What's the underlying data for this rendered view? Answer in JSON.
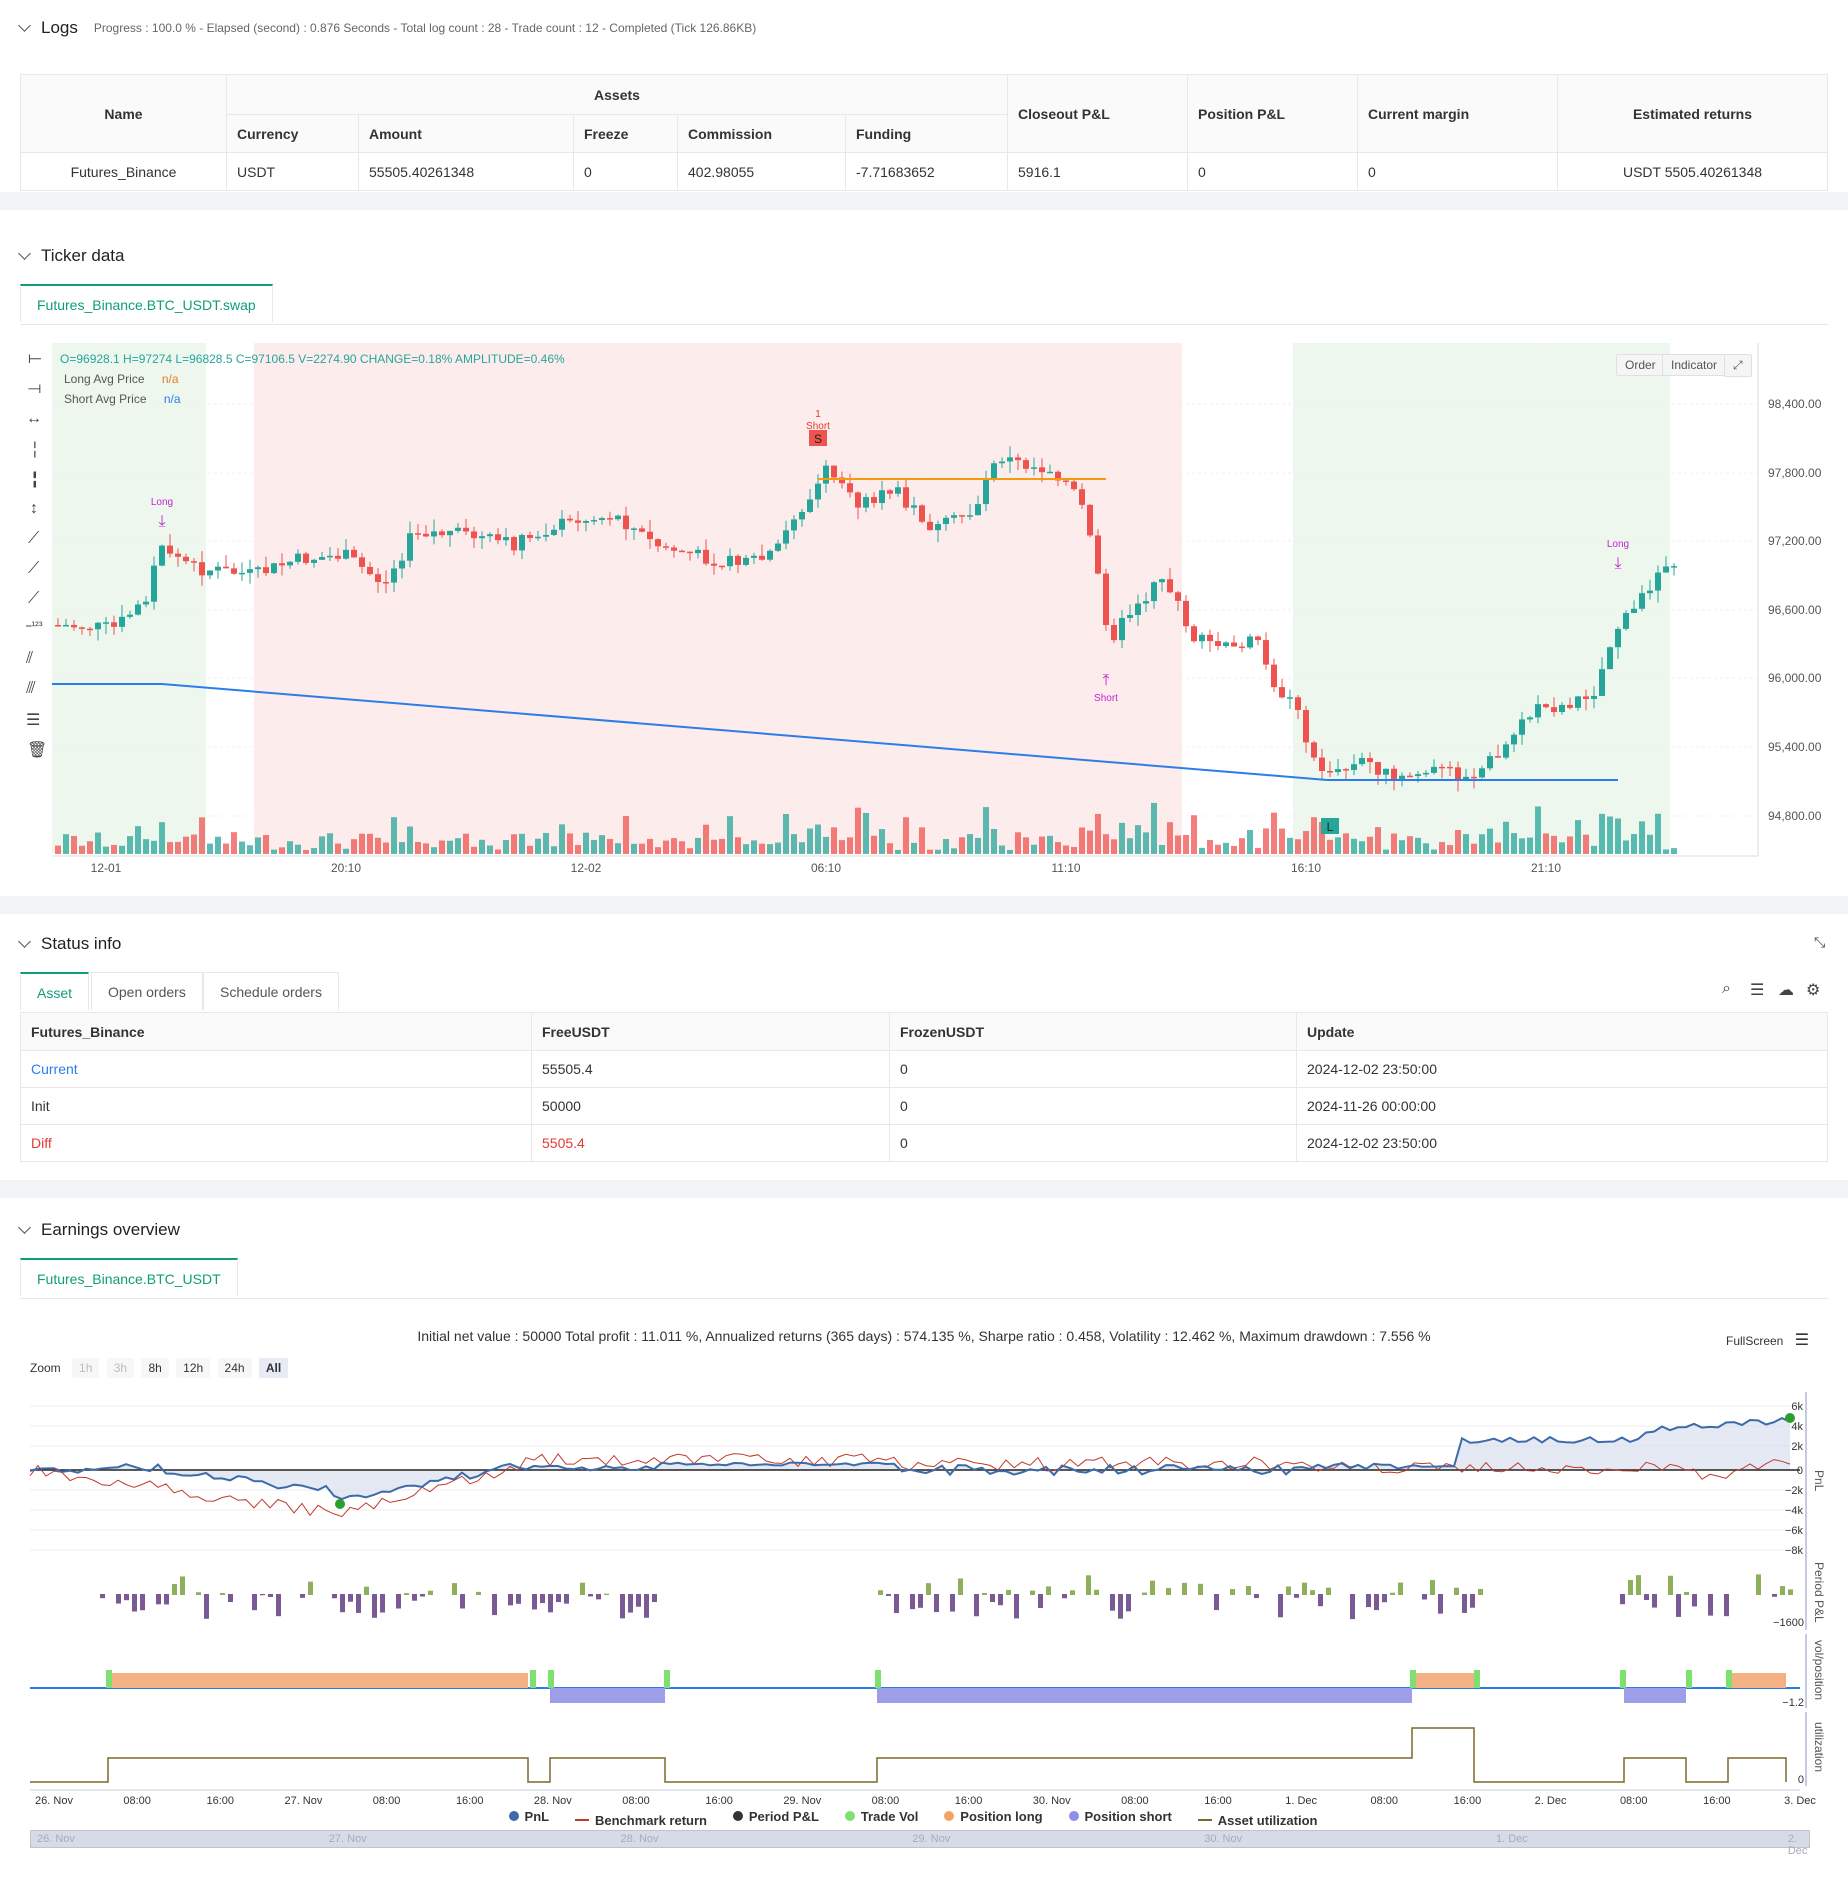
{
  "logs": {
    "title": "Logs",
    "progress": "Progress : 100.0 % - Elapsed (second) : 0.876  Seconds - Total log count : 28 - Trade count : 12 - Completed (Tick 126.86KB)",
    "table": {
      "name_h": "Name",
      "assets_h": "Assets",
      "currency_h": "Currency",
      "amount_h": "Amount",
      "freeze_h": "Freeze",
      "commission_h": "Commission",
      "funding_h": "Funding",
      "closeout_h": "Closeout P&L",
      "position_h": "Position P&L",
      "margin_h": "Current margin",
      "returns_h": "Estimated returns",
      "row": {
        "name": "Futures_Binance",
        "currency": "USDT",
        "amount": "55505.40261348",
        "freeze": "0",
        "commission": "402.98055",
        "funding": "-7.71683652",
        "closeout": "5916.1",
        "position": "0",
        "margin": "0",
        "returns": "USDT 5505.40261348"
      }
    }
  },
  "ticker": {
    "title": "Ticker data",
    "tab": "Futures_Binance.BTC_USDT.swap",
    "ohlc": "O=96928.1  H=97274  L=96828.5  C=97106.5  V=2274.90  CHANGE=0.18%  AMPLITUDE=0.46%",
    "long_avg_label": "Long Avg Price",
    "long_avg_val": "n/a",
    "short_avg_label": "Short Avg Price",
    "short_avg_val": "n/a",
    "order_btn": "Order",
    "indicator_btn": "Indicator",
    "price_ticks": [
      "98,400.00",
      "97,800.00",
      "97,200.00",
      "96,600.00",
      "96,000.00",
      "95,400.00",
      "94,800.00"
    ],
    "time_ticks": [
      "12-01",
      "20:10",
      "12-02",
      "06:10",
      "11:10",
      "16:10",
      "21:10"
    ],
    "marks": {
      "long1": "Long",
      "short_top_num": "1",
      "short_top": "Short",
      "s_box": "S",
      "short2": "Short",
      "l_box": "L",
      "long2": "Long"
    }
  },
  "status": {
    "title": "Status info",
    "tabs": [
      "Asset",
      "Open orders",
      "Schedule orders"
    ],
    "headers": [
      "Futures_Binance",
      "FreeUSDT",
      "FrozenUSDT",
      "Update"
    ],
    "rows": [
      {
        "label": "Current",
        "free": "55505.4",
        "frozen": "0",
        "update": "2024-12-02 23:50:00"
      },
      {
        "label": "Init",
        "free": "50000",
        "frozen": "0",
        "update": "2024-11-26 00:00:00"
      },
      {
        "label": "Diff",
        "free": "5505.4",
        "frozen": "0",
        "update": "2024-12-02 23:50:00"
      }
    ]
  },
  "earnings": {
    "title": "Earnings overview",
    "tab": "Futures_Binance.BTC_USDT",
    "summary": "Initial net value : 50000  Total profit : 11.011 %, Annualized returns (365 days) : 574.135 %, Sharpe ratio : 0.458, Volatility : 12.462 %, Maximum drawdown : 7.556 %",
    "fullscreen": "FullScreen",
    "zoom_label": "Zoom",
    "zoom": [
      "1h",
      "3h",
      "8h",
      "12h",
      "24h",
      "All"
    ],
    "pnl_ticks": [
      "6k",
      "4k",
      "2k",
      "0",
      "−2k",
      "−4k",
      "−6k",
      "−8k"
    ],
    "pnl_axis": "PnL",
    "period_axis": "Period P&L",
    "period_tick": "−1600",
    "vol_axis": "vol/position",
    "vol_tick": "−1.2",
    "util_axis": "utilization",
    "util_tick": "0",
    "x_ticks": [
      "26. Nov",
      "08:00",
      "16:00",
      "27. Nov",
      "08:00",
      "16:00",
      "28. Nov",
      "08:00",
      "16:00",
      "29. Nov",
      "08:00",
      "16:00",
      "30. Nov",
      "08:00",
      "16:00",
      "1. Dec",
      "08:00",
      "16:00",
      "2. Dec",
      "08:00",
      "16:00",
      "3. Dec"
    ],
    "nav_ticks": [
      "26. Nov",
      "27. Nov",
      "28. Nov",
      "29. Nov",
      "30. Nov",
      "1. Dec",
      "2. Dec"
    ],
    "legend": [
      {
        "name": "PnL",
        "color": "#3d6aa8"
      },
      {
        "name": "Benchmark return",
        "color": "#c0392b"
      },
      {
        "name": "Period P&L",
        "color": "#333333"
      },
      {
        "name": "Trade Vol",
        "color": "#7ee06e"
      },
      {
        "name": "Position long",
        "color": "#f4a460"
      },
      {
        "name": "Position short",
        "color": "#8f8fe8"
      },
      {
        "name": "Asset utilization",
        "color": "#7a6a2a"
      }
    ]
  },
  "colors": {
    "up": "#26a69a",
    "down": "#ef5350",
    "accent": "#0f9d7a"
  }
}
